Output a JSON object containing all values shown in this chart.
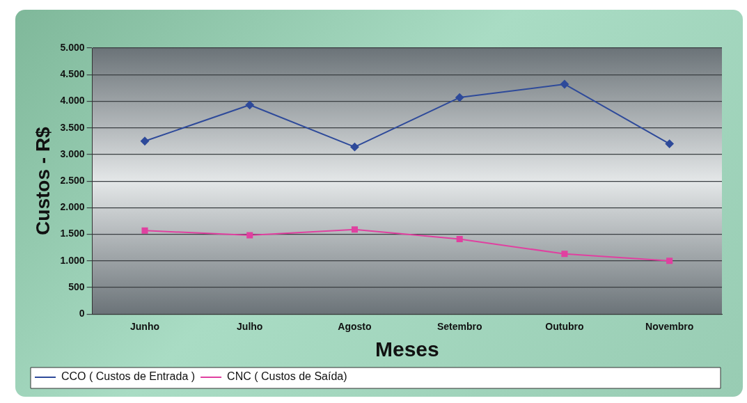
{
  "chart_data": {
    "type": "line",
    "xlabel": "Meses",
    "ylabel": "Custos - R$",
    "categories": [
      "Junho",
      "Julho",
      "Agosto",
      "Setembro",
      "Outubro",
      "Novembro"
    ],
    "series": [
      {
        "name": "CCO ( Custos de Entrada )",
        "color": "#2e4a9a",
        "marker": "diamond",
        "values": [
          3250,
          3930,
          3140,
          4070,
          4320,
          3200
        ]
      },
      {
        "name": "CNC ( Custos de Saída)",
        "color": "#e040a0",
        "marker": "square",
        "values": [
          1570,
          1480,
          1590,
          1410,
          1130,
          1000
        ]
      }
    ],
    "ylim": [
      0,
      5000
    ],
    "yticks": [
      {
        "value": 0,
        "label": "0"
      },
      {
        "value": 500,
        "label": "500"
      },
      {
        "value": 1000,
        "label": "1.000"
      },
      {
        "value": 1500,
        "label": "1.500"
      },
      {
        "value": 2000,
        "label": "2.000"
      },
      {
        "value": 2500,
        "label": "2.500"
      },
      {
        "value": 3000,
        "label": "3.000"
      },
      {
        "value": 3500,
        "label": "3.500"
      },
      {
        "value": 4000,
        "label": "4.000"
      },
      {
        "value": 4500,
        "label": "4.500"
      },
      {
        "value": 5000,
        "label": "5.000"
      }
    ],
    "grid": "y",
    "legend": "bottom",
    "line_style": "solid"
  }
}
